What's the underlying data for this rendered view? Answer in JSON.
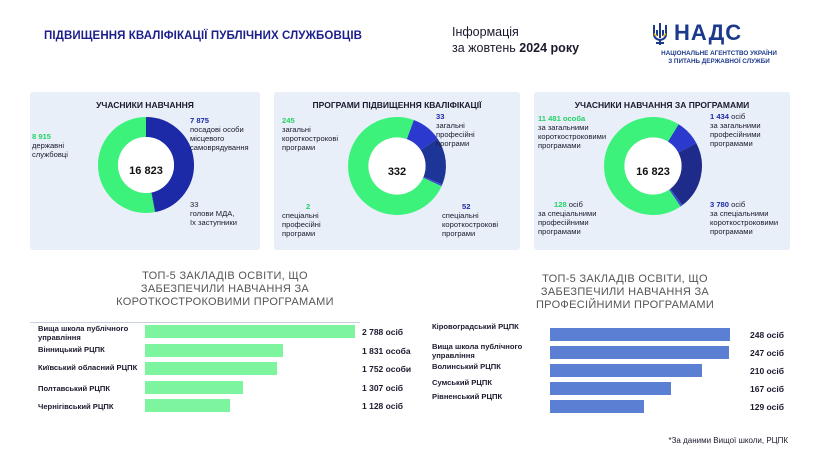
{
  "header": {
    "title": "ПІДВИЩЕННЯ КВАЛІФІКАЦІЇ ПУБЛІЧНИХ СЛУЖБОВЦІВ",
    "info_line1": "Інформація",
    "info_line2_prefix": "за жовтень ",
    "info_line2_bold": "2024 року",
    "logo_name": "НАДС",
    "logo_sub1": "НАЦІОНАЛЬНЕ АГЕНТСТВО УКРАЇНИ",
    "logo_sub2": "З ПИТАНЬ ДЕРЖАВНОЇ СЛУЖБИ",
    "logo_icon": "trident-icon"
  },
  "colors": {
    "green": "#3cf27a",
    "dark_blue": "#1c2aa8",
    "mid_blue": "#2b39cf",
    "light_blue": "#5a8ee0",
    "bar_blue": "#5b7fd2",
    "bar_green": "#7cf59e"
  },
  "panel1": {
    "title": "УЧАСНИКИ НАВЧАННЯ",
    "center": "16 823",
    "a_num": "8 915",
    "a_text1": "державні",
    "a_text2": "службовці",
    "b_num": "7 875",
    "b_text1": "посадові особи",
    "b_text2": "місцевого",
    "b_text3": "самоврядування",
    "c_num": "33",
    "c_text1": "голови МДА,",
    "c_text2": "їх заступники"
  },
  "panel2": {
    "title": "ПРОГРАМИ ПІДВИЩЕННЯ КВАЛІФІКАЦІЇ",
    "center": "332",
    "a_num": "245",
    "a_text1": "загальні",
    "a_text2": "короткострокові",
    "a_text3": "програми",
    "b_num": "33",
    "b_text1": "загальні",
    "b_text2": "професійні",
    "b_text3": "програми",
    "c_num": "2",
    "c_text1": "спеціальні",
    "c_text2": "професійні",
    "c_text3": "програми",
    "d_num": "52",
    "d_text1": "спеціальні",
    "d_text2": "короткострокові",
    "d_text3": "програми"
  },
  "panel3": {
    "title": "УЧАСНИКИ НАВЧАННЯ ЗА ПРОГРАМАМИ",
    "center": "16 823",
    "a_num": "11 481 особа",
    "a_text1": "за загальними",
    "a_text2": "короткостроковими",
    "a_text3": "програмами",
    "b_num": "1 434",
    "b_suffix": " осіб",
    "b_text1": "за загальними",
    "b_text2": "професійними",
    "b_text3": "програмами",
    "c_num": "128",
    "c_suffix": " осіб",
    "c_text1": "за спеціальними",
    "c_text2": "професійними",
    "c_text3": "програмами",
    "d_num": "3 780",
    "d_suffix": " осіб",
    "d_text1": "за спеціальними",
    "d_text2": "короткостроковими",
    "d_text3": "програмами"
  },
  "section_left": {
    "line1": "ТОП-5 ЗАКЛАДІВ ОСВІТИ, ЩО",
    "line2": "ЗАБЕЗПЕЧИЛИ НАВЧАННЯ ЗА",
    "line3": "КОРОТКОСТРОКОВИМИ ПРОГРАМАМИ"
  },
  "section_right": {
    "line1": "ТОП-5 ЗАКЛАДІВ ОСВІТИ, ЩО",
    "line2": "ЗАБЕЗПЕЧИЛИ НАВЧАННЯ ЗА",
    "line3": "ПРОФЕСІЙНИМИ ПРОГРАМАМИ"
  },
  "footnote": "*За даними Вищої школи, РЦПК",
  "chart_data": [
    {
      "type": "pie",
      "title": "УЧАСНИКИ НАВЧАННЯ",
      "categories": [
        "державні службовці",
        "посадові особи місцевого самоврядування",
        "голови МДА, їх заступники"
      ],
      "values": [
        8915,
        7875,
        33
      ],
      "total": 16823
    },
    {
      "type": "pie",
      "title": "ПРОГРАМИ ПІДВИЩЕННЯ КВАЛІФІКАЦІЇ",
      "categories": [
        "загальні короткострокові програми",
        "загальні професійні програми",
        "спеціальні короткострокові програми",
        "спеціальні професійні програми"
      ],
      "values": [
        245,
        33,
        52,
        2
      ],
      "total": 332
    },
    {
      "type": "pie",
      "title": "УЧАСНИКИ НАВЧАННЯ ЗА ПРОГРАМАМИ",
      "categories": [
        "за загальними короткостроковими програмами",
        "за загальними професійними програмами",
        "за спеціальними короткостроковими програмами",
        "за спеціальними професійними програмами"
      ],
      "values": [
        11481,
        1434,
        3780,
        128
      ],
      "total": 16823
    },
    {
      "type": "bar",
      "title": "ТОП-5 ЗАКЛАДІВ ОСВІТИ, ЩО ЗАБЕЗПЕЧИЛИ НАВЧАННЯ ЗА КОРОТКОСТРОКОВИМИ ПРОГРАМАМИ",
      "categories": [
        "Вища школа публічного управління",
        "Вінницький РЦПК",
        "Київський обласний РЦПК",
        "Полтавський РЦПК",
        "Чернігівський РЦПК"
      ],
      "values": [
        2788,
        1831,
        1752,
        1307,
        1128
      ],
      "value_labels": [
        "2 788 осіб",
        "1 831 особа",
        "1 752 особи",
        "1 307 осіб",
        "1 128 осіб"
      ]
    },
    {
      "type": "bar",
      "title": "ТОП-5 ЗАКЛАДІВ ОСВІТИ, ЩО ЗАБЕЗПЕЧИЛИ НАВЧАННЯ ЗА ПРОФЕСІЙНИМИ ПРОГРАМАМИ",
      "categories": [
        "Кіровоградський РЦПК",
        "Вища школа публічного управління",
        "Волинський РЦПК",
        "Сумський РЦПК",
        "Рівненський РЦПК"
      ],
      "values": [
        248,
        247,
        210,
        167,
        129
      ],
      "value_labels": [
        "248 осіб",
        "247 осіб",
        "210 осіб",
        "167 осіб",
        "129 осіб"
      ]
    }
  ]
}
